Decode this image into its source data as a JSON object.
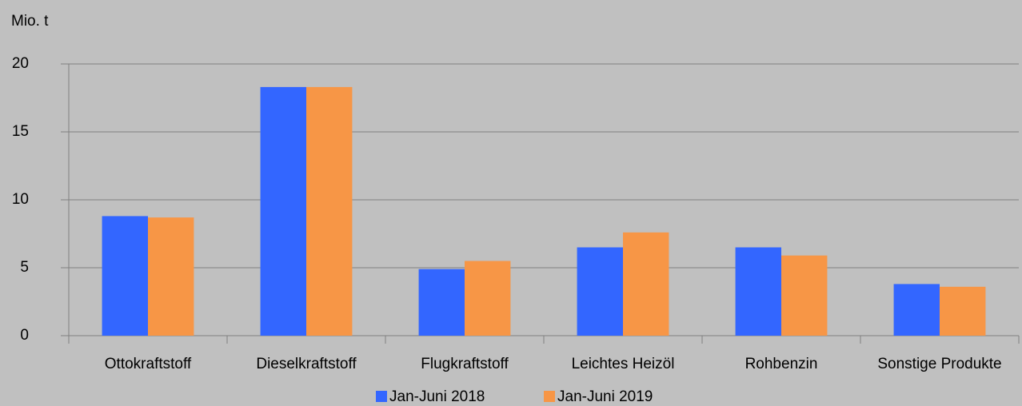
{
  "chart_data": {
    "type": "bar",
    "y_unit": "Mio. t",
    "categories": [
      "Ottokraftstoff",
      "Dieselkraftstoff",
      "Flugkraftstoff",
      "Leichtes Heizöl",
      "Rohbenzin",
      "Sonstige Produkte"
    ],
    "series": [
      {
        "name": "Jan-Juni 2018",
        "color": "#3366ff",
        "values": [
          8.8,
          18.3,
          4.9,
          6.5,
          6.5,
          3.8
        ]
      },
      {
        "name": "Jan-Juni 2019",
        "color": "#f79646",
        "values": [
          8.7,
          18.3,
          5.5,
          7.6,
          5.9,
          3.6
        ]
      }
    ],
    "ylim": [
      0,
      20
    ],
    "yticks": [
      0,
      5,
      10,
      15,
      20
    ],
    "grid": true,
    "legend": "bottom"
  }
}
